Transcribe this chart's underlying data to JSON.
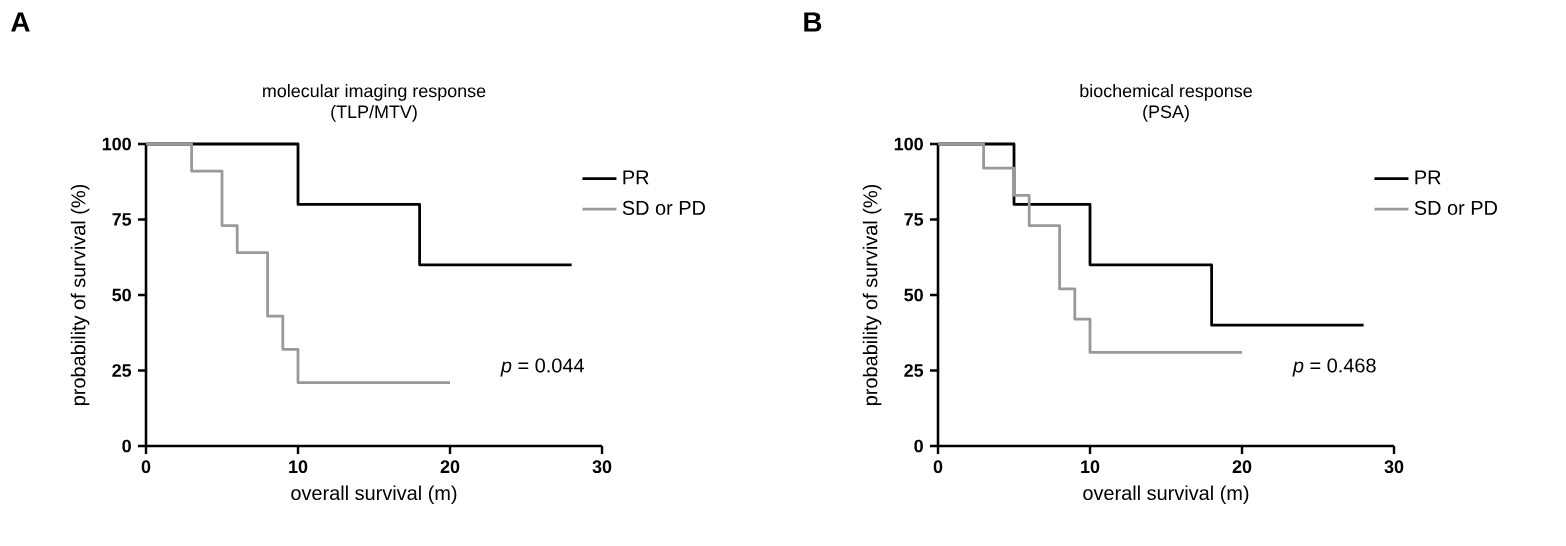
{
  "chart_data": [
    {
      "type": "step",
      "title": "molecular imaging response",
      "subtitle": "(TLP/MTV)",
      "xlabel": "overall survival (m)",
      "ylabel": "probability of survival (%)",
      "xlim": [
        0,
        30
      ],
      "ylim": [
        0,
        100
      ],
      "xticks": [
        0,
        10,
        20,
        30
      ],
      "yticks": [
        0,
        25,
        50,
        75,
        100
      ],
      "legend": "right",
      "series": [
        {
          "name": "PR",
          "color": "#000000",
          "x": [
            0,
            10,
            18,
            28
          ],
          "values": [
            100,
            80,
            60,
            60
          ]
        },
        {
          "name": "SD or PD",
          "color": "#999999",
          "x": [
            0,
            3,
            5,
            6,
            8,
            9,
            10,
            20
          ],
          "values": [
            100,
            91,
            73,
            64,
            43,
            32,
            21,
            21
          ]
        }
      ],
      "annotations": [
        "A",
        "*p* = 0.044"
      ]
    },
    {
      "type": "step",
      "title": "biochemical response",
      "subtitle": "(PSA)",
      "xlabel": "overall survival (m)",
      "ylabel": "probability of survival (%)",
      "xlim": [
        0,
        30
      ],
      "ylim": [
        0,
        100
      ],
      "xticks": [
        0,
        10,
        20,
        30
      ],
      "yticks": [
        0,
        25,
        50,
        75,
        100
      ],
      "legend": "right",
      "series": [
        {
          "name": "PR",
          "color": "#000000",
          "x": [
            0,
            5,
            10,
            18,
            28
          ],
          "values": [
            100,
            80,
            60,
            40,
            40
          ]
        },
        {
          "name": "SD or PD",
          "color": "#999999",
          "x": [
            0,
            3,
            5,
            6,
            8,
            9,
            10,
            20
          ],
          "values": [
            100,
            92,
            83,
            73,
            52,
            42,
            31,
            31
          ]
        }
      ],
      "annotations": [
        "B",
        "*p* = 0.468"
      ]
    }
  ]
}
